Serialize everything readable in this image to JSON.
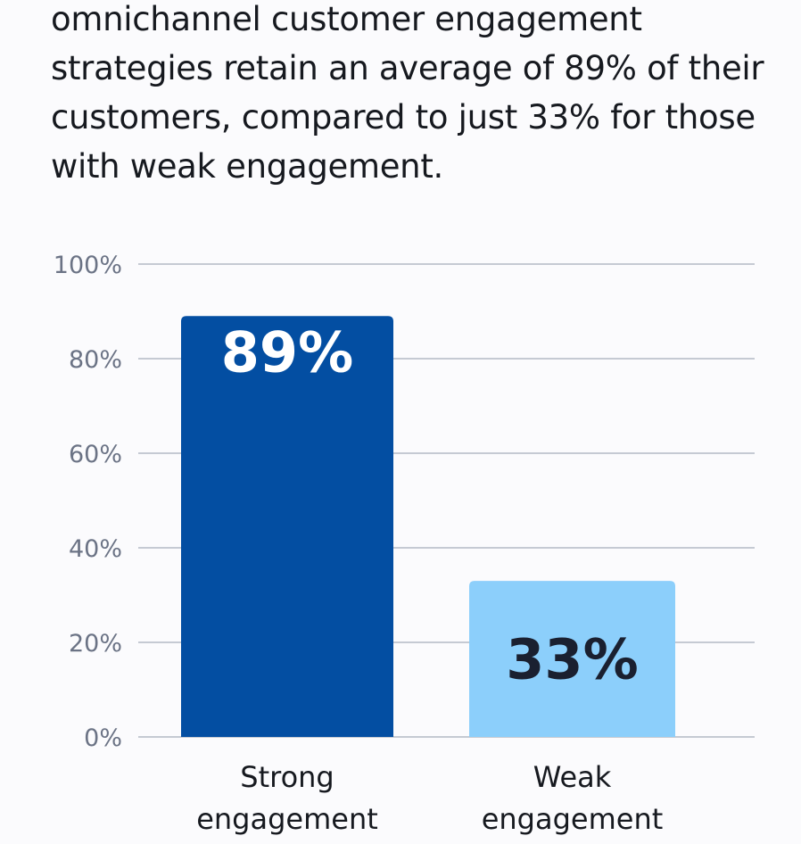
{
  "headline": "omnichannel customer engagement strategies retain an average of 89% of their customers, compared to just 33% for those with weak engagement.",
  "chart_data": {
    "type": "bar",
    "categories": [
      "Strong engagement",
      "Weak engagement"
    ],
    "category_lines": [
      [
        "Strong",
        "engagement"
      ],
      [
        "Weak",
        "engagement"
      ]
    ],
    "values": [
      89,
      33
    ],
    "data_labels": [
      "89%",
      "33%"
    ],
    "colors": [
      "#034ea2",
      "#8ccffb"
    ],
    "label_colors": [
      "#ffffff",
      "#1a2030"
    ],
    "yticks": [
      0,
      20,
      40,
      60,
      80,
      100
    ],
    "ytick_labels": [
      "0%",
      "20%",
      "40%",
      "60%",
      "80%",
      "100%"
    ],
    "ylim": [
      0,
      100
    ],
    "grid": true,
    "title": "",
    "xlabel": "",
    "ylabel": ""
  }
}
